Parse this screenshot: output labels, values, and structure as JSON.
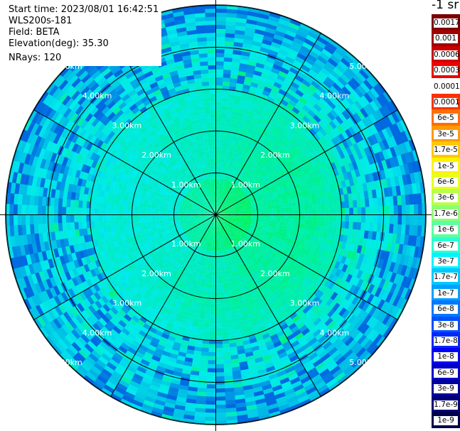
{
  "info": {
    "start_time": "Start time: 2023/08/01 16:42:51",
    "instrument": "WLS200s-181",
    "field": "Field: BETA",
    "elevation": "Elevation(deg): 35.30",
    "nrays": "NRays: 120"
  },
  "legend": {
    "units": "-1 sr",
    "labels": [
      "0.0017",
      "0.001",
      "0.0006",
      "0.0003",
      "0.00017",
      "0.0001",
      "6e-5",
      "3e-5",
      "1.7e-5",
      "1e-5",
      "6e-6",
      "3e-6",
      "1.7e-6",
      "1e-6",
      "6e-7",
      "3e-7",
      "1.7e-7",
      "1e-7",
      "6e-8",
      "3e-8",
      "1.7e-8",
      "1e-8",
      "6e-9",
      "3e-9",
      "1.7e-9",
      "1e-9"
    ],
    "colors": [
      "#7a0000",
      "#a00000",
      "#c80000",
      "#ee0000",
      "#ffffff",
      "#ff3000",
      "#ff6e00",
      "#ff9a00",
      "#ffc800",
      "#fff200",
      "#e6ff1a",
      "#b8ff47",
      "#8cff73",
      "#5cffa0",
      "#2affd0",
      "#00f4ff",
      "#00c8ff",
      "#00a0ff",
      "#0078ff",
      "#0050ff",
      "#0028ff",
      "#0000f4",
      "#0000c8",
      "#00009e",
      "#000078",
      "#00004e"
    ]
  },
  "range_labels": [
    "1.00km",
    "2.00km",
    "3.00km",
    "4.00km",
    "5.00km"
  ],
  "colors": {
    "background": "#ffffff",
    "grid": "#000000"
  }
}
